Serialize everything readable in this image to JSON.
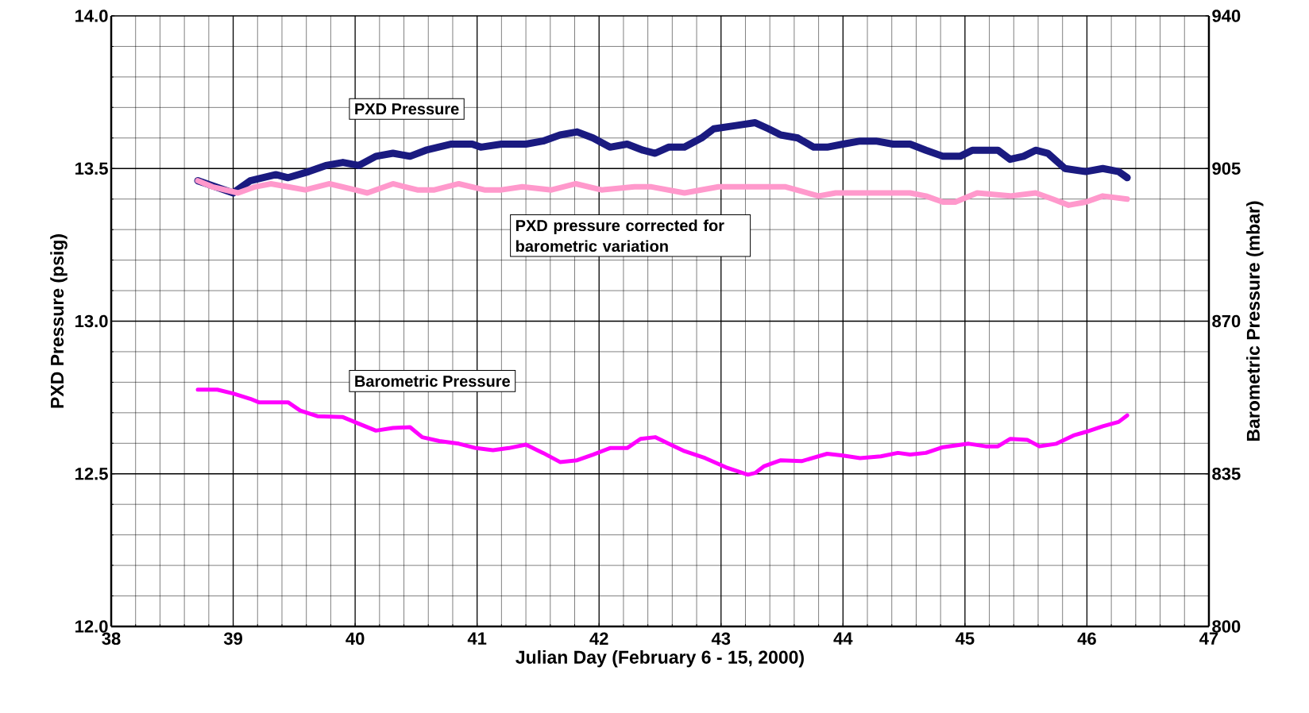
{
  "chart_data": {
    "type": "line",
    "xlabel": "Julian Day (February 6 - 15, 2000)",
    "ylabel": "PXD Pressure (psig)",
    "y2label": "Barometric Pressure (mbar)",
    "xlim": [
      38,
      47
    ],
    "xticks": [
      38,
      39,
      40,
      41,
      42,
      43,
      44,
      45,
      46,
      47
    ],
    "ylim": [
      12.0,
      14.0
    ],
    "yticks": [
      {
        "value": 12.0,
        "label": "12.0"
      },
      {
        "value": 12.5,
        "label": "12.5"
      },
      {
        "value": 13.0,
        "label": "13.0"
      },
      {
        "value": 13.5,
        "label": "13.5"
      },
      {
        "value": 14.0,
        "label": "14.0"
      }
    ],
    "y2lim": [
      800,
      940
    ],
    "y2ticks": [
      800,
      835,
      870,
      905,
      940
    ],
    "grid": true,
    "line_style": "solid",
    "series": [
      {
        "name": "PXD Pressure",
        "color": "#1a1a80",
        "x": [
          38.71,
          39.0,
          39.14,
          39.35,
          39.45,
          39.62,
          39.76,
          39.9,
          40.03,
          40.17,
          40.31,
          40.45,
          40.58,
          40.79,
          40.96,
          41.03,
          41.2,
          41.4,
          41.54,
          41.68,
          41.82,
          41.95,
          42.09,
          42.23,
          42.36,
          42.46,
          42.57,
          42.7,
          42.84,
          42.94,
          43.11,
          43.28,
          43.39,
          43.49,
          43.63,
          43.76,
          43.87,
          44.0,
          44.14,
          44.27,
          44.41,
          44.55,
          44.68,
          44.82,
          44.96,
          45.06,
          45.17,
          45.27,
          45.37,
          45.48,
          45.58,
          45.68,
          45.82,
          45.99,
          46.13,
          46.26,
          46.33
        ],
        "values": [
          13.46,
          13.42,
          13.46,
          13.48,
          13.47,
          13.49,
          13.51,
          13.52,
          13.51,
          13.54,
          13.55,
          13.54,
          13.56,
          13.58,
          13.58,
          13.57,
          13.58,
          13.58,
          13.59,
          13.61,
          13.62,
          13.6,
          13.57,
          13.58,
          13.56,
          13.55,
          13.57,
          13.57,
          13.6,
          13.63,
          13.64,
          13.65,
          13.63,
          13.61,
          13.6,
          13.57,
          13.57,
          13.58,
          13.59,
          13.59,
          13.58,
          13.58,
          13.56,
          13.54,
          13.54,
          13.56,
          13.56,
          13.56,
          13.53,
          13.54,
          13.56,
          13.55,
          13.5,
          13.49,
          13.5,
          13.49,
          13.47
        ]
      },
      {
        "name": "PXD pressure corrected for barometric variation",
        "color": "#ff99cc",
        "x": [
          38.71,
          38.83,
          39.04,
          39.18,
          39.31,
          39.45,
          39.59,
          39.79,
          40.0,
          40.1,
          40.31,
          40.51,
          40.65,
          40.85,
          41.06,
          41.2,
          41.37,
          41.61,
          41.81,
          42.02,
          42.29,
          42.43,
          42.7,
          42.98,
          43.11,
          43.53,
          43.8,
          43.94,
          44.21,
          44.55,
          44.68,
          44.82,
          44.92,
          45.1,
          45.37,
          45.58,
          45.72,
          45.85,
          45.99,
          46.13,
          46.33
        ],
        "values": [
          13.46,
          13.44,
          13.42,
          13.44,
          13.45,
          13.44,
          13.43,
          13.45,
          13.43,
          13.42,
          13.45,
          13.43,
          13.43,
          13.45,
          13.43,
          13.43,
          13.44,
          13.43,
          13.45,
          13.43,
          13.44,
          13.44,
          13.42,
          13.44,
          13.44,
          13.44,
          13.41,
          13.42,
          13.42,
          13.42,
          13.41,
          13.39,
          13.39,
          13.42,
          13.41,
          13.42,
          13.4,
          13.38,
          13.39,
          13.41,
          13.4
        ]
      },
      {
        "name": "Barometric Pressure",
        "color": "#ff00ff",
        "axis": "y2",
        "x": [
          38.71,
          38.87,
          39.0,
          39.14,
          39.21,
          39.45,
          39.55,
          39.69,
          39.9,
          40.03,
          40.17,
          40.31,
          40.45,
          40.55,
          40.69,
          40.85,
          40.99,
          41.13,
          41.26,
          41.4,
          41.54,
          41.68,
          41.82,
          41.95,
          42.09,
          42.23,
          42.34,
          42.46,
          42.57,
          42.7,
          42.87,
          43.04,
          43.22,
          43.28,
          43.35,
          43.49,
          43.66,
          43.87,
          44.0,
          44.14,
          44.31,
          44.45,
          44.55,
          44.68,
          44.82,
          45.03,
          45.17,
          45.27,
          45.37,
          45.51,
          45.61,
          45.75,
          45.89,
          45.99,
          46.13,
          46.26,
          46.33
        ],
        "values": [
          854.3,
          854.3,
          853.4,
          852.2,
          851.4,
          851.4,
          849.5,
          848.2,
          848.0,
          846.5,
          844.9,
          845.5,
          845.7,
          843.4,
          842.5,
          841.9,
          840.9,
          840.4,
          840.9,
          841.7,
          839.8,
          837.7,
          838.1,
          839.4,
          840.9,
          840.9,
          843.0,
          843.4,
          841.9,
          840.2,
          838.6,
          836.5,
          834.8,
          835.2,
          836.7,
          838.1,
          837.9,
          839.6,
          839.2,
          838.6,
          839.0,
          839.8,
          839.4,
          839.8,
          841.1,
          841.9,
          841.3,
          841.3,
          843.0,
          842.8,
          841.3,
          841.9,
          843.8,
          844.6,
          845.9,
          846.9,
          848.4
        ]
      }
    ]
  }
}
